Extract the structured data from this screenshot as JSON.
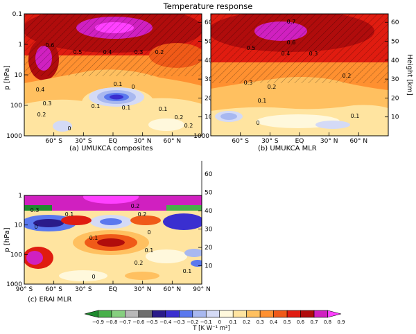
{
  "figure": {
    "title": "Temperature response"
  },
  "colorbar": {
    "levels": [
      "−0.9",
      "−0.8",
      "−0.7",
      "−0.6",
      "−0.5",
      "−0.4",
      "−0.3",
      "−0.2",
      "−0.1",
      "0",
      "0.1",
      "0.2",
      "0.3",
      "0.4",
      "0.5",
      "0.6",
      "0.7",
      "0.8",
      "0.9"
    ],
    "colors": [
      "#1e8a2e",
      "#48b04a",
      "#86cf7f",
      "#b8b8b8",
      "#6e6e6e",
      "#2a1b8a",
      "#3a2fd0",
      "#5a78ee",
      "#a8b8f0",
      "#d4daf6",
      "#fff8dc",
      "#ffe4a0",
      "#ffc060",
      "#ff9030",
      "#f05a18",
      "#e01c10",
      "#b00c0c",
      "#d020c0",
      "#ff40ff"
    ],
    "label": "T [K W⁻¹ m²]"
  },
  "chart_data": [
    {
      "type": "heatmap",
      "panel_label": "(a) UMUKCA composites",
      "ylabel": "p [hPa]",
      "y2label": "Height [km]",
      "yscale": "log",
      "ylim": [
        1000,
        0.1
      ],
      "y_ticks": [
        "0.1",
        "1",
        "10",
        "100",
        "1000"
      ],
      "x_ticks": [
        "60° S",
        "30° S",
        "EQ",
        "30° N",
        "60° N"
      ],
      "xlim": [
        -90,
        90
      ],
      "y2_ticks": [
        "10",
        "20",
        "30",
        "40",
        "50",
        "60"
      ],
      "contour_labels": [
        "0.6",
        "0.5",
        "0.4",
        "0.3",
        "0.2",
        "0.4",
        "0.3",
        "0.2",
        "0.1",
        "0",
        "0.1",
        "0.1",
        "0.2",
        "0",
        "0.2",
        "0.1"
      ]
    },
    {
      "type": "heatmap",
      "panel_label": "(b) UMUKCA MLR",
      "ylabel": "",
      "y2label": "Height [km]",
      "yscale": "log",
      "ylim": [
        1000,
        0.1
      ],
      "x_ticks": [
        "60° S",
        "30° S",
        "EQ",
        "30° N",
        "60° N"
      ],
      "xlim": [
        -90,
        90
      ],
      "y2_ticks": [
        "10",
        "20",
        "30",
        "40",
        "50",
        "60"
      ],
      "contour_labels": [
        "0.7",
        "0.6",
        "0.5",
        "0.4",
        "0.3",
        "0.3",
        "0.2",
        "0.1",
        "0",
        "0.2",
        "0.1"
      ]
    },
    {
      "type": "heatmap",
      "panel_label": "(c) ERAI MLR",
      "ylabel": "p [hPa]",
      "yscale": "log",
      "ylim": [
        1000,
        1
      ],
      "y_ticks": [
        "1",
        "10",
        "100",
        "1000"
      ],
      "x_ticks": [
        "90° S",
        "60° S",
        "30° S",
        "EQ",
        "30° N",
        "60° N",
        "90° N"
      ],
      "xlim": [
        -90,
        90
      ],
      "y2_ticks": [
        "10",
        "20",
        "30",
        "40",
        "50",
        "60"
      ],
      "contour_labels": [
        "0.3",
        "0.2",
        "0.1",
        "0",
        "0.1",
        "0",
        "0.2",
        "0.1",
        "0.2",
        "0",
        "0.1"
      ]
    }
  ]
}
